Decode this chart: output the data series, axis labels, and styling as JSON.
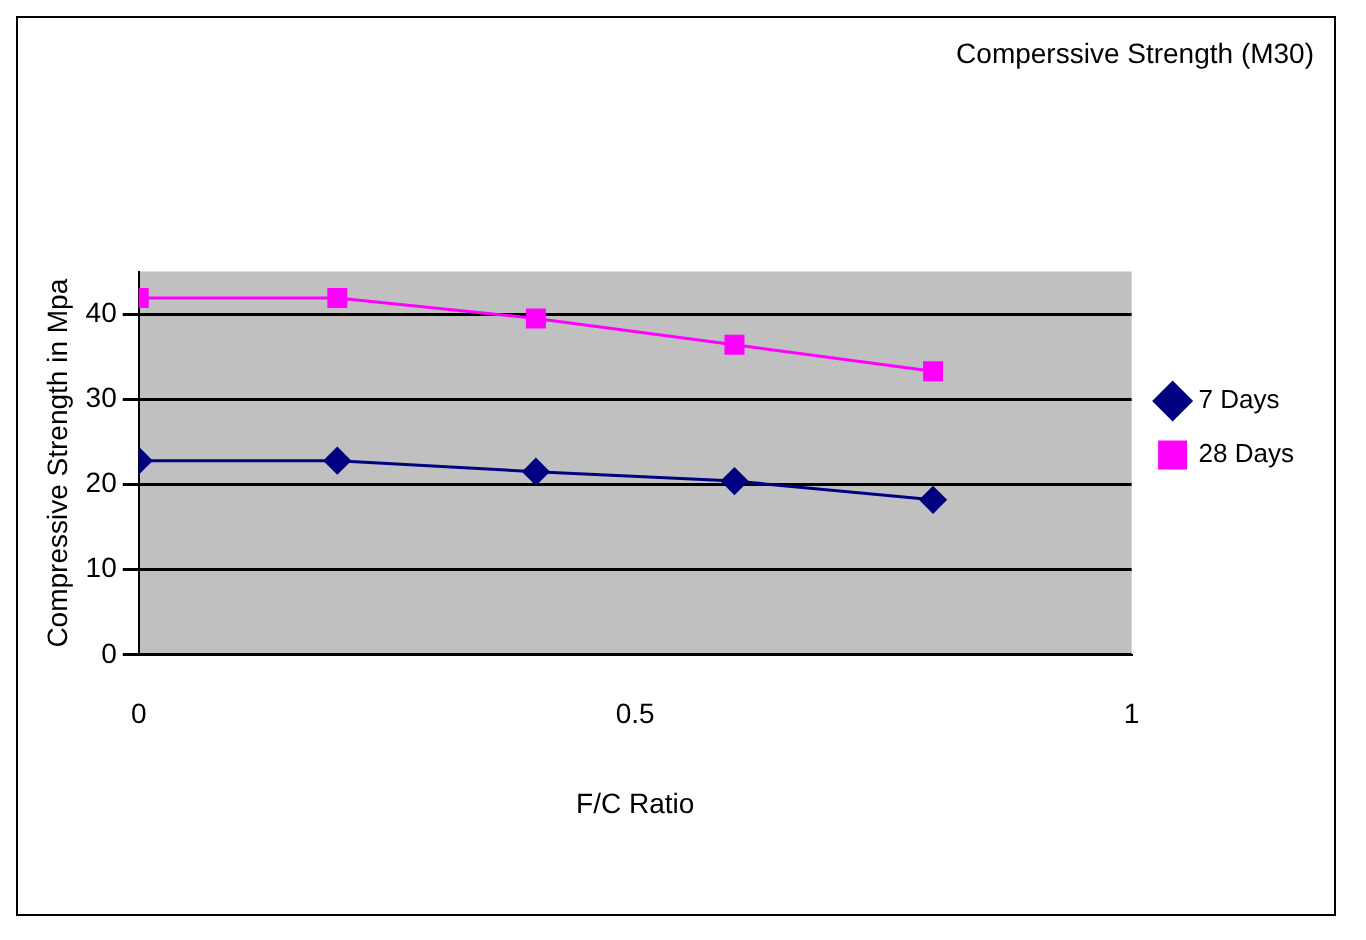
{
  "chart_data": {
    "type": "line",
    "title": "Comperssive Strength (M30)",
    "xlabel": "F/C Ratio",
    "ylabel": "Compressive Strength in Mpa",
    "x": [
      0,
      0.2,
      0.4,
      0.6,
      0.8
    ],
    "series": [
      {
        "name": "7 Days",
        "color": "#000080",
        "marker": "diamond",
        "values": [
          22.8,
          22.8,
          21.5,
          20.4,
          18.2
        ]
      },
      {
        "name": "28 Days",
        "color": "#ff00ff",
        "marker": "square",
        "values": [
          41.9,
          41.9,
          39.5,
          36.4,
          33.3
        ]
      }
    ],
    "xlim": [
      0,
      1
    ],
    "xticks": [
      0,
      0.5,
      1
    ],
    "ylim": [
      0,
      45
    ],
    "yticks": [
      0,
      10,
      20,
      30,
      40
    ],
    "grid": "y",
    "legend": "right"
  }
}
